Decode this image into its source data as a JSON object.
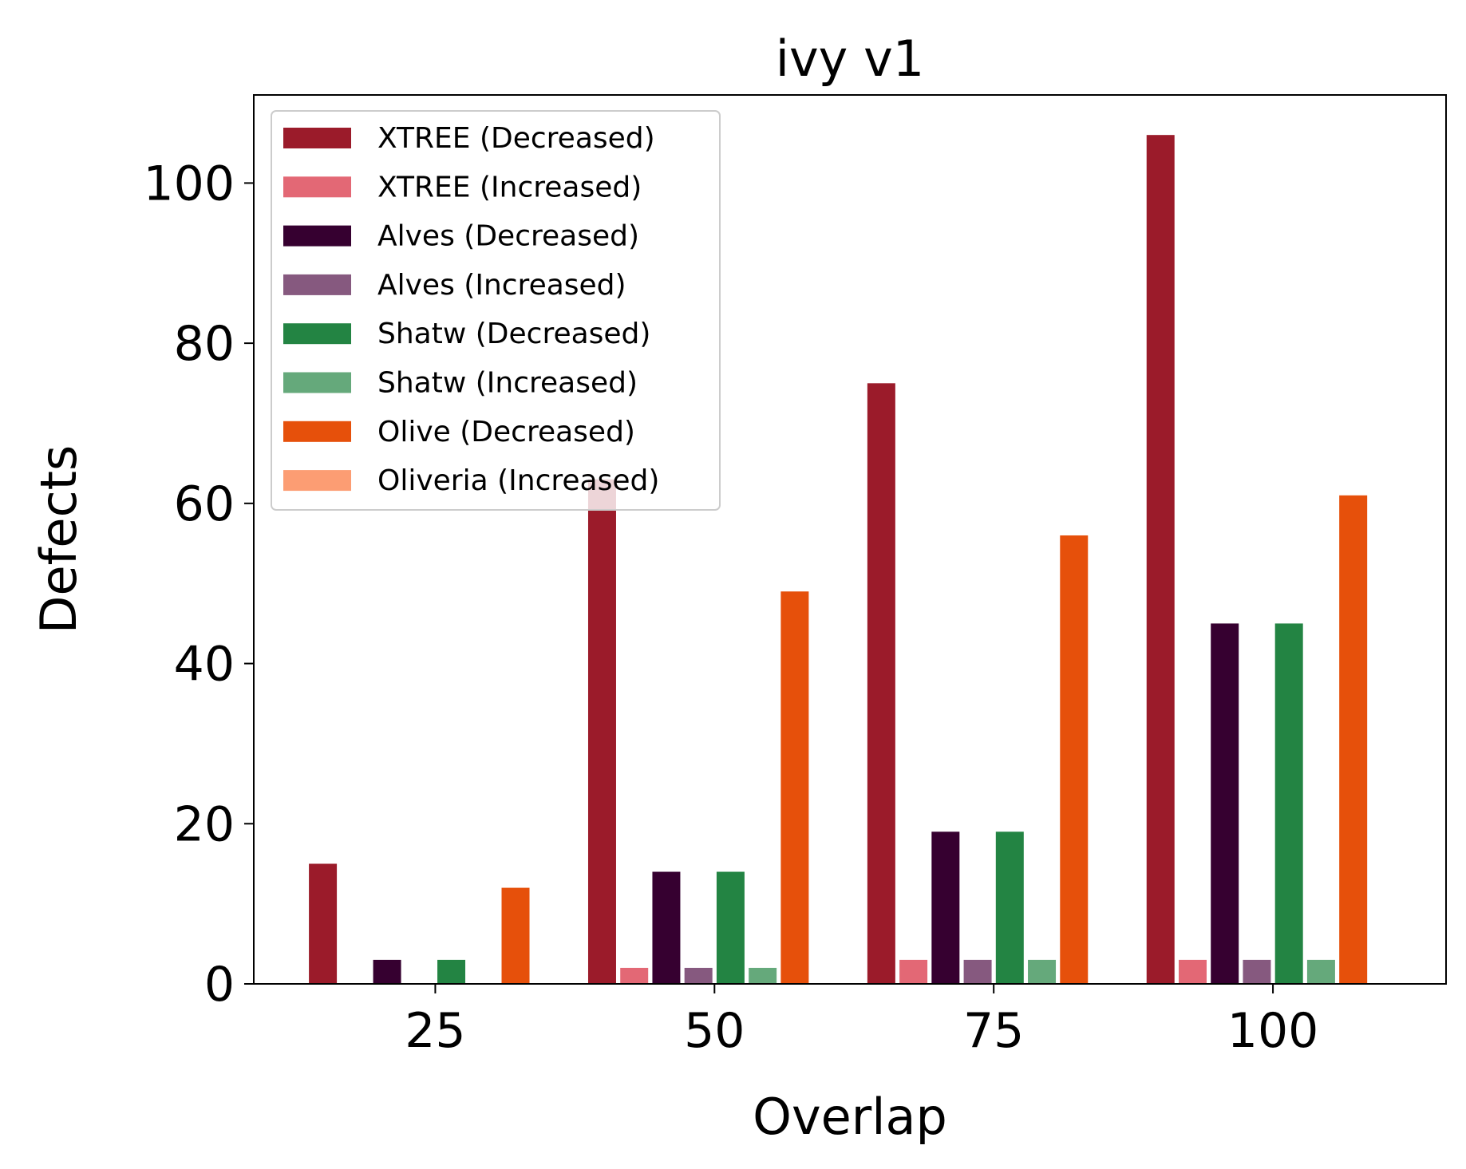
{
  "chart_data": {
    "type": "bar",
    "title": "ivy v1",
    "xlabel": "Overlap",
    "ylabel": "Defects",
    "categories": [
      "25",
      "50",
      "75",
      "100"
    ],
    "ylim": [
      0,
      111
    ],
    "xlim": [
      -0.65,
      3.62
    ],
    "yticks": [
      0,
      20,
      40,
      60,
      80,
      100
    ],
    "grid": false,
    "legend_position": "top-left",
    "series": [
      {
        "name": "XTREE (Decreased)",
        "color": "#9b1b2a",
        "values": [
          15,
          63,
          75,
          106
        ]
      },
      {
        "name": "XTREE (Increased)",
        "color": "#e36875",
        "values": [
          0,
          2,
          3,
          3
        ]
      },
      {
        "name": "Alves (Decreased)",
        "color": "#360030",
        "values": [
          3,
          14,
          19,
          45
        ]
      },
      {
        "name": "Alves (Increased)",
        "color": "#86597f",
        "values": [
          0,
          2,
          3,
          3
        ]
      },
      {
        "name": "Shatw (Decreased)",
        "color": "#238443",
        "values": [
          3,
          14,
          19,
          45
        ]
      },
      {
        "name": "Shatw (Increased)",
        "color": "#65a97b",
        "values": [
          0,
          2,
          3,
          3
        ]
      },
      {
        "name": "Olive (Decreased)",
        "color": "#e6500b",
        "values": [
          12,
          49,
          56,
          61
        ]
      },
      {
        "name": "Oliveria (Increased)",
        "color": "#fc9d73",
        "values": [
          0,
          0,
          0,
          0
        ]
      }
    ]
  }
}
